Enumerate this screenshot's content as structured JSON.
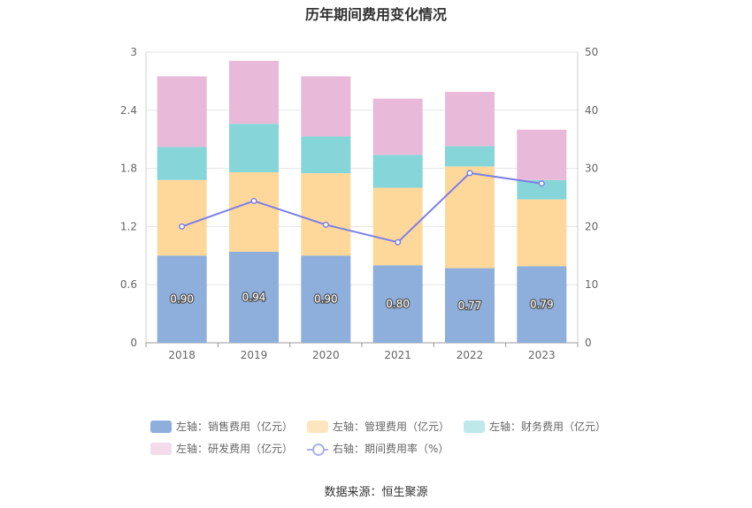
{
  "chart_data": {
    "type": "bar",
    "title": "历年期间费用变化情况",
    "categories": [
      "2018",
      "2019",
      "2020",
      "2021",
      "2022",
      "2023"
    ],
    "stacked": true,
    "y_left": {
      "ticks": [
        "0",
        "0.6",
        "1.2",
        "1.8",
        "2.4",
        "3"
      ],
      "ylim": [
        0,
        3
      ]
    },
    "y_right": {
      "ticks": [
        "0",
        "10",
        "20",
        "30",
        "40",
        "50"
      ],
      "ylim": [
        0,
        50
      ]
    },
    "grid": true,
    "legend_position": "bottom",
    "series": [
      {
        "name": "左轴：销售费用（亿元）",
        "type": "bar",
        "axis": "left",
        "color": "#8eaedb",
        "values": [
          0.9,
          0.94,
          0.9,
          0.8,
          0.77,
          0.79
        ],
        "labels": [
          "0.90",
          "0.94",
          "0.90",
          "0.80",
          "0.77",
          "0.79"
        ]
      },
      {
        "name": "左轴：管理费用（亿元）",
        "type": "bar",
        "axis": "left",
        "color": "#fed89a",
        "values": [
          0.78,
          0.82,
          0.85,
          0.8,
          1.05,
          0.69
        ]
      },
      {
        "name": "左轴：财务费用（亿元）",
        "type": "bar",
        "axis": "left",
        "color": "#86d5d9",
        "values": [
          0.34,
          0.5,
          0.38,
          0.34,
          0.21,
          0.2
        ]
      },
      {
        "name": "左轴：研发费用（亿元）",
        "type": "bar",
        "axis": "left",
        "color": "#e8b9d9",
        "values": [
          0.73,
          0.65,
          0.62,
          0.58,
          0.56,
          0.52
        ]
      },
      {
        "name": "右轴：期间费用率（%）",
        "type": "line",
        "axis": "right",
        "color": "#7b7fe6",
        "values": [
          20.0,
          24.4,
          20.3,
          17.3,
          29.2,
          27.4
        ]
      }
    ]
  },
  "source": "数据来源：恒生聚源"
}
